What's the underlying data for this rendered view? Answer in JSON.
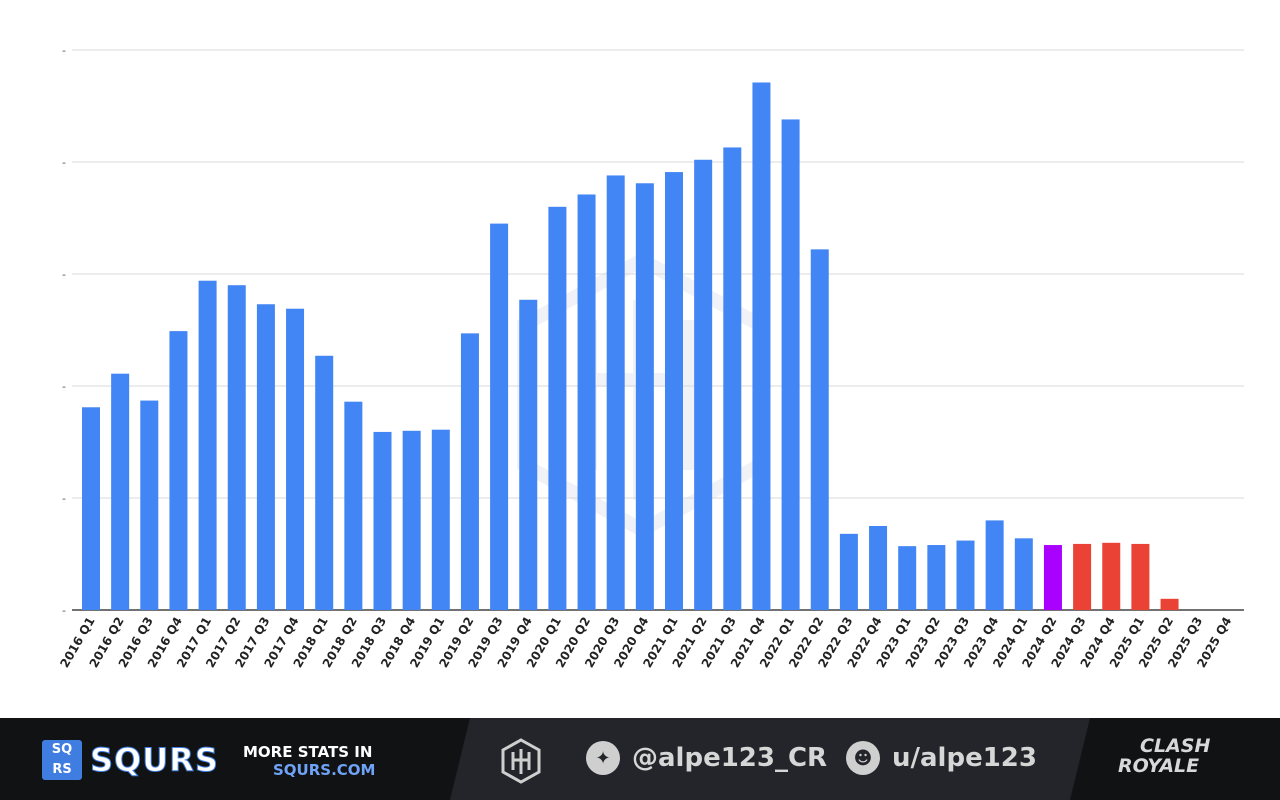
{
  "chart_data": {
    "type": "bar",
    "categories": [
      "2016 Q1",
      "2016 Q2",
      "2016 Q3",
      "2016 Q4",
      "2017 Q1",
      "2017 Q2",
      "2017 Q3",
      "2017 Q4",
      "2018 Q1",
      "2018 Q2",
      "2018 Q3",
      "2018 Q4",
      "2019 Q1",
      "2019 Q2",
      "2019 Q3",
      "2019 Q4",
      "2020 Q1",
      "2020 Q2",
      "2020 Q3",
      "2020 Q4",
      "2021 Q1",
      "2021 Q2",
      "2021 Q3",
      "2021 Q4",
      "2022 Q1",
      "2022 Q2",
      "2022 Q3",
      "2022 Q4",
      "2023 Q1",
      "2023 Q2",
      "2023 Q3",
      "2023 Q4",
      "2024 Q1",
      "2024 Q2",
      "2024 Q3",
      "2024 Q4",
      "2025 Q1",
      "2025 Q2",
      "2025 Q3",
      "2025 Q4"
    ],
    "values": [
      1.81,
      2.11,
      1.87,
      2.49,
      2.94,
      2.9,
      2.73,
      2.69,
      2.27,
      1.86,
      1.59,
      1.6,
      1.61,
      2.47,
      3.45,
      2.77,
      3.6,
      3.71,
      3.88,
      3.81,
      3.91,
      4.02,
      4.13,
      4.71,
      4.38,
      3.22,
      0.68,
      0.75,
      0.57,
      0.58,
      0.62,
      0.8,
      0.64,
      0.58,
      0.59,
      0.6,
      0.59,
      0.1,
      0,
      0
    ],
    "colors": [
      "#4285f4",
      "#4285f4",
      "#4285f4",
      "#4285f4",
      "#4285f4",
      "#4285f4",
      "#4285f4",
      "#4285f4",
      "#4285f4",
      "#4285f4",
      "#4285f4",
      "#4285f4",
      "#4285f4",
      "#4285f4",
      "#4285f4",
      "#4285f4",
      "#4285f4",
      "#4285f4",
      "#4285f4",
      "#4285f4",
      "#4285f4",
      "#4285f4",
      "#4285f4",
      "#4285f4",
      "#4285f4",
      "#4285f4",
      "#4285f4",
      "#4285f4",
      "#4285f4",
      "#4285f4",
      "#4285f4",
      "#4285f4",
      "#4285f4",
      "#aa00ff",
      "#ea4335",
      "#ea4335",
      "#ea4335",
      "#ea4335",
      "#ea4335",
      "#ea4335"
    ],
    "ylim": [
      0,
      5
    ],
    "yticks": [
      0,
      1,
      2,
      3,
      4,
      5
    ],
    "ytick_labels": [
      "-",
      "-",
      "-",
      "-",
      "-",
      "-"
    ],
    "grid": true,
    "title": "",
    "xlabel": "",
    "ylabel": ""
  },
  "footer": {
    "brand": {
      "logo_letters": [
        "SQ",
        "RS"
      ],
      "name": "SQURS"
    },
    "promo": {
      "line1": "MORE STATS IN",
      "line2": "SQURS.COM"
    },
    "twitter": {
      "icon": "twitter-icon",
      "handle": "@alpe123_CR"
    },
    "reddit": {
      "icon": "reddit-icon",
      "handle": "u/alpe123"
    },
    "game_logo": {
      "line1": "CLASH",
      "line2": "ROYALE"
    }
  }
}
